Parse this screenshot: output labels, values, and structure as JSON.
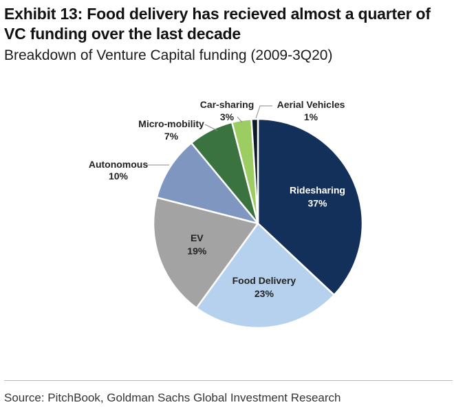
{
  "header": {
    "title": "Exhibit 13: Food delivery has recieved almost a quarter of VC funding over the last decade",
    "subtitle": "Breakdown of Venture Capital funding (2009-3Q20)"
  },
  "footer": {
    "source": "Source: PitchBook, Goldman Sachs Global Investment Research"
  },
  "chart_data": {
    "type": "pie",
    "title": "Breakdown of Venture Capital funding (2009-3Q20)",
    "unit": "%",
    "slices": [
      {
        "name": "Ridesharing",
        "value": 37,
        "label": "37%",
        "color": "#13305a",
        "label_color": "#ffffff",
        "placement": "inside"
      },
      {
        "name": "Food Delivery",
        "value": 23,
        "label": "23%",
        "color": "#b5d1ee",
        "label_color": "#222222",
        "placement": "inside"
      },
      {
        "name": "EV",
        "value": 19,
        "label": "19%",
        "color": "#a3a3a3",
        "label_color": "#222222",
        "placement": "inside"
      },
      {
        "name": "Autonomous",
        "value": 10,
        "label": "10%",
        "color": "#7f97c0",
        "label_color": "#222222",
        "placement": "outside"
      },
      {
        "name": "Micro-mobility",
        "value": 7,
        "label": "7%",
        "color": "#3a7340",
        "label_color": "#222222",
        "placement": "outside"
      },
      {
        "name": "Car-sharing",
        "value": 3,
        "label": "3%",
        "color": "#9ccd62",
        "label_color": "#222222",
        "placement": "outside"
      },
      {
        "name": "Aerial Vehicles",
        "value": 1,
        "label": "1%",
        "color": "#0d1a2c",
        "label_color": "#222222",
        "placement": "outside"
      }
    ],
    "start": "12 o'clock",
    "direction": "clockwise",
    "legend": "none"
  }
}
